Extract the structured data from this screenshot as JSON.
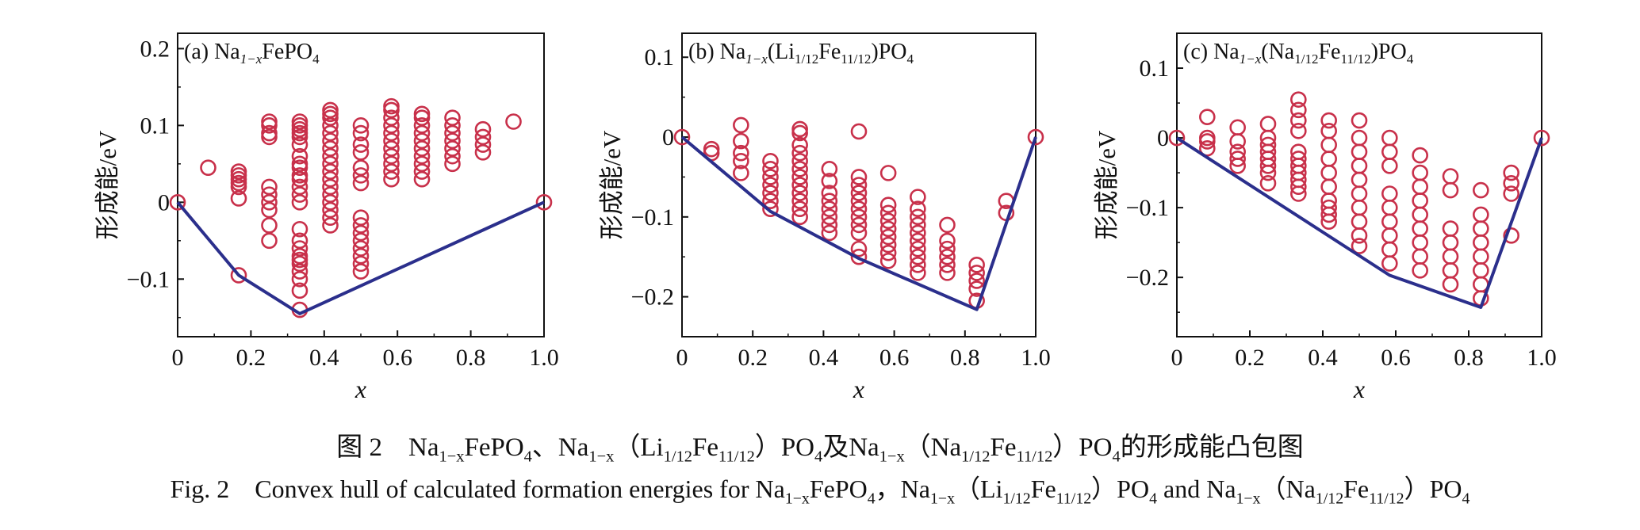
{
  "chart_data": [
    {
      "type": "scatter",
      "label": "(a) Na",
      "label_sub": "1−x",
      "label_rest": "FePO",
      "label_sub2": "4",
      "label_tail": "",
      "xlabel": "x",
      "ylabel": "形成能/eV",
      "xlim": [
        0,
        1.0
      ],
      "ylim": [
        -0.175,
        0.22
      ],
      "xticks": [
        "0",
        "0.2",
        "0.4",
        "0.6",
        "0.8",
        "1.0"
      ],
      "yticks": [
        {
          "v": 0.2,
          "t": "0.2"
        },
        {
          "v": 0.1,
          "t": "0.1"
        },
        {
          "v": 0,
          "t": "0"
        },
        {
          "v": -0.1,
          "t": "−0.1"
        }
      ],
      "marker_color": "#c8304a",
      "hull_color": "#2b2f8c",
      "hull": [
        [
          0,
          0
        ],
        [
          0.1667,
          -0.095
        ],
        [
          0.3333,
          -0.145
        ],
        [
          1.0,
          0
        ]
      ],
      "points": [
        [
          0,
          0
        ],
        [
          0.0833,
          0.045
        ],
        [
          0.1667,
          0.04
        ],
        [
          0.1667,
          0.035
        ],
        [
          0.1667,
          0.03
        ],
        [
          0.1667,
          0.025
        ],
        [
          0.1667,
          0.02
        ],
        [
          0.1667,
          0.005
        ],
        [
          0.1667,
          -0.095
        ],
        [
          0.25,
          0.105
        ],
        [
          0.25,
          0.1
        ],
        [
          0.25,
          0.09
        ],
        [
          0.25,
          0.085
        ],
        [
          0.25,
          0.02
        ],
        [
          0.25,
          0.01
        ],
        [
          0.25,
          0.0
        ],
        [
          0.25,
          -0.01
        ],
        [
          0.25,
          -0.03
        ],
        [
          0.25,
          -0.05
        ],
        [
          0.3333,
          0.105
        ],
        [
          0.3333,
          0.1
        ],
        [
          0.3333,
          0.095
        ],
        [
          0.3333,
          0.09
        ],
        [
          0.3333,
          0.085
        ],
        [
          0.3333,
          0.075
        ],
        [
          0.3333,
          0.06
        ],
        [
          0.3333,
          0.05
        ],
        [
          0.3333,
          0.045
        ],
        [
          0.3333,
          0.035
        ],
        [
          0.3333,
          0.03
        ],
        [
          0.3333,
          0.02
        ],
        [
          0.3333,
          0.01
        ],
        [
          0.3333,
          0.0
        ],
        [
          0.3333,
          -0.035
        ],
        [
          0.3333,
          -0.05
        ],
        [
          0.3333,
          -0.06
        ],
        [
          0.3333,
          -0.07
        ],
        [
          0.3333,
          -0.075
        ],
        [
          0.3333,
          -0.08
        ],
        [
          0.3333,
          -0.09
        ],
        [
          0.3333,
          -0.1
        ],
        [
          0.3333,
          -0.115
        ],
        [
          0.3333,
          -0.14
        ],
        [
          0.4167,
          0.12
        ],
        [
          0.4167,
          0.115
        ],
        [
          0.4167,
          0.11
        ],
        [
          0.4167,
          0.1
        ],
        [
          0.4167,
          0.09
        ],
        [
          0.4167,
          0.08
        ],
        [
          0.4167,
          0.07
        ],
        [
          0.4167,
          0.06
        ],
        [
          0.4167,
          0.05
        ],
        [
          0.4167,
          0.04
        ],
        [
          0.4167,
          0.03
        ],
        [
          0.4167,
          0.02
        ],
        [
          0.4167,
          0.01
        ],
        [
          0.4167,
          0.0
        ],
        [
          0.4167,
          -0.01
        ],
        [
          0.4167,
          -0.02
        ],
        [
          0.4167,
          -0.03
        ],
        [
          0.5,
          0.1
        ],
        [
          0.5,
          0.09
        ],
        [
          0.5,
          0.075
        ],
        [
          0.5,
          0.065
        ],
        [
          0.5,
          0.045
        ],
        [
          0.5,
          0.035
        ],
        [
          0.5,
          0.025
        ],
        [
          0.5,
          -0.02
        ],
        [
          0.5,
          -0.03
        ],
        [
          0.5,
          -0.04
        ],
        [
          0.5,
          -0.05
        ],
        [
          0.5,
          -0.06
        ],
        [
          0.5,
          -0.07
        ],
        [
          0.5,
          -0.08
        ],
        [
          0.5,
          -0.09
        ],
        [
          0.5833,
          0.125
        ],
        [
          0.5833,
          0.12
        ],
        [
          0.5833,
          0.11
        ],
        [
          0.5833,
          0.1
        ],
        [
          0.5833,
          0.09
        ],
        [
          0.5833,
          0.08
        ],
        [
          0.5833,
          0.07
        ],
        [
          0.5833,
          0.06
        ],
        [
          0.5833,
          0.05
        ],
        [
          0.5833,
          0.04
        ],
        [
          0.5833,
          0.03
        ],
        [
          0.6667,
          0.115
        ],
        [
          0.6667,
          0.11
        ],
        [
          0.6667,
          0.1
        ],
        [
          0.6667,
          0.09
        ],
        [
          0.6667,
          0.08
        ],
        [
          0.6667,
          0.07
        ],
        [
          0.6667,
          0.06
        ],
        [
          0.6667,
          0.05
        ],
        [
          0.6667,
          0.04
        ],
        [
          0.6667,
          0.03
        ],
        [
          0.75,
          0.11
        ],
        [
          0.75,
          0.1
        ],
        [
          0.75,
          0.09
        ],
        [
          0.75,
          0.08
        ],
        [
          0.75,
          0.07
        ],
        [
          0.75,
          0.06
        ],
        [
          0.75,
          0.05
        ],
        [
          0.8333,
          0.095
        ],
        [
          0.8333,
          0.085
        ],
        [
          0.8333,
          0.075
        ],
        [
          0.8333,
          0.065
        ],
        [
          0.9167,
          0.105
        ],
        [
          1.0,
          0
        ]
      ]
    },
    {
      "type": "scatter",
      "label": "(b) Na",
      "label_sub": "1−x",
      "label_rest": "(Li",
      "label_sub2": "1/12",
      "label_tail": "Fe",
      "label_sub3": "11/12",
      "label_end": ")PO",
      "label_sub4": "4",
      "xlabel": "x",
      "ylabel": "形成能/eV",
      "xlim": [
        0,
        1.0
      ],
      "ylim": [
        -0.25,
        0.13
      ],
      "xticks": [
        "0",
        "0.2",
        "0.4",
        "0.6",
        "0.8",
        "1.0"
      ],
      "yticks": [
        {
          "v": 0.1,
          "t": "0.1"
        },
        {
          "v": 0,
          "t": "0"
        },
        {
          "v": -0.1,
          "t": "−0.1"
        },
        {
          "v": -0.2,
          "t": "−0.2"
        }
      ],
      "marker_color": "#c8304a",
      "hull_color": "#2b2f8c",
      "hull": [
        [
          0,
          0
        ],
        [
          0.25,
          -0.093
        ],
        [
          0.5,
          -0.152
        ],
        [
          0.8333,
          -0.216
        ],
        [
          1.0,
          0
        ]
      ],
      "points": [
        [
          0,
          0
        ],
        [
          0.0833,
          -0.015
        ],
        [
          0.0833,
          -0.02
        ],
        [
          0.1667,
          0.015
        ],
        [
          0.1667,
          -0.005
        ],
        [
          0.1667,
          -0.02
        ],
        [
          0.1667,
          -0.03
        ],
        [
          0.1667,
          -0.045
        ],
        [
          0.25,
          -0.03
        ],
        [
          0.25,
          -0.04
        ],
        [
          0.25,
          -0.05
        ],
        [
          0.25,
          -0.06
        ],
        [
          0.25,
          -0.07
        ],
        [
          0.25,
          -0.08
        ],
        [
          0.25,
          -0.09
        ],
        [
          0.3333,
          0.01
        ],
        [
          0.3333,
          0.005
        ],
        [
          0.3333,
          -0.01
        ],
        [
          0.3333,
          -0.02
        ],
        [
          0.3333,
          -0.03
        ],
        [
          0.3333,
          -0.04
        ],
        [
          0.3333,
          -0.05
        ],
        [
          0.3333,
          -0.06
        ],
        [
          0.3333,
          -0.07
        ],
        [
          0.3333,
          -0.08
        ],
        [
          0.3333,
          -0.09
        ],
        [
          0.3333,
          -0.1
        ],
        [
          0.4167,
          -0.04
        ],
        [
          0.4167,
          -0.055
        ],
        [
          0.4167,
          -0.07
        ],
        [
          0.4167,
          -0.08
        ],
        [
          0.4167,
          -0.09
        ],
        [
          0.4167,
          -0.1
        ],
        [
          0.4167,
          -0.11
        ],
        [
          0.4167,
          -0.12
        ],
        [
          0.5,
          0.007
        ],
        [
          0.5,
          -0.05
        ],
        [
          0.5,
          -0.06
        ],
        [
          0.5,
          -0.07
        ],
        [
          0.5,
          -0.08
        ],
        [
          0.5,
          -0.09
        ],
        [
          0.5,
          -0.1
        ],
        [
          0.5,
          -0.11
        ],
        [
          0.5,
          -0.12
        ],
        [
          0.5,
          -0.14
        ],
        [
          0.5,
          -0.15
        ],
        [
          0.5833,
          -0.045
        ],
        [
          0.5833,
          -0.085
        ],
        [
          0.5833,
          -0.095
        ],
        [
          0.5833,
          -0.105
        ],
        [
          0.5833,
          -0.115
        ],
        [
          0.5833,
          -0.125
        ],
        [
          0.5833,
          -0.135
        ],
        [
          0.5833,
          -0.145
        ],
        [
          0.5833,
          -0.155
        ],
        [
          0.6667,
          -0.075
        ],
        [
          0.6667,
          -0.09
        ],
        [
          0.6667,
          -0.1
        ],
        [
          0.6667,
          -0.11
        ],
        [
          0.6667,
          -0.12
        ],
        [
          0.6667,
          -0.13
        ],
        [
          0.6667,
          -0.14
        ],
        [
          0.6667,
          -0.15
        ],
        [
          0.6667,
          -0.16
        ],
        [
          0.6667,
          -0.17
        ],
        [
          0.75,
          -0.11
        ],
        [
          0.75,
          -0.13
        ],
        [
          0.75,
          -0.14
        ],
        [
          0.75,
          -0.15
        ],
        [
          0.75,
          -0.16
        ],
        [
          0.75,
          -0.17
        ],
        [
          0.8333,
          -0.16
        ],
        [
          0.8333,
          -0.17
        ],
        [
          0.8333,
          -0.18
        ],
        [
          0.8333,
          -0.19
        ],
        [
          0.8333,
          -0.205
        ],
        [
          0.9167,
          -0.08
        ],
        [
          0.9167,
          -0.095
        ],
        [
          1.0,
          0
        ]
      ]
    },
    {
      "type": "scatter",
      "label": "(c) Na",
      "label_sub": "1−x",
      "label_rest": "(Na",
      "label_sub2": "1/12",
      "label_tail": "Fe",
      "label_sub3": "11/12",
      "label_end": ")PO",
      "label_sub4": "4",
      "xlabel": "x",
      "ylabel": "形成能/eV",
      "xlim": [
        0,
        1.0
      ],
      "ylim": [
        -0.285,
        0.15
      ],
      "xticks": [
        "0",
        "0.2",
        "0.4",
        "0.6",
        "0.8",
        "1.0"
      ],
      "yticks": [
        {
          "v": 0.1,
          "t": "0.1"
        },
        {
          "v": 0,
          "t": "0"
        },
        {
          "v": -0.1,
          "t": "−0.1"
        },
        {
          "v": -0.2,
          "t": "−0.2"
        }
      ],
      "marker_color": "#c8304a",
      "hull_color": "#2b2f8c",
      "hull": [
        [
          0,
          0
        ],
        [
          0.5833,
          -0.197
        ],
        [
          0.8333,
          -0.243
        ],
        [
          1.0,
          0
        ]
      ],
      "points": [
        [
          0,
          0
        ],
        [
          0.0833,
          0.03
        ],
        [
          0.0833,
          0.0
        ],
        [
          0.0833,
          -0.005
        ],
        [
          0.0833,
          -0.015
        ],
        [
          0.1667,
          0.015
        ],
        [
          0.1667,
          -0.005
        ],
        [
          0.1667,
          -0.02
        ],
        [
          0.1667,
          -0.03
        ],
        [
          0.1667,
          -0.04
        ],
        [
          0.25,
          0.02
        ],
        [
          0.25,
          0.0
        ],
        [
          0.25,
          -0.01
        ],
        [
          0.25,
          -0.02
        ],
        [
          0.25,
          -0.03
        ],
        [
          0.25,
          -0.04
        ],
        [
          0.25,
          -0.05
        ],
        [
          0.25,
          -0.065
        ],
        [
          0.3333,
          0.055
        ],
        [
          0.3333,
          0.04
        ],
        [
          0.3333,
          0.025
        ],
        [
          0.3333,
          0.01
        ],
        [
          0.3333,
          -0.02
        ],
        [
          0.3333,
          -0.03
        ],
        [
          0.3333,
          -0.04
        ],
        [
          0.3333,
          -0.05
        ],
        [
          0.3333,
          -0.06
        ],
        [
          0.3333,
          -0.07
        ],
        [
          0.3333,
          -0.08
        ],
        [
          0.4167,
          0.025
        ],
        [
          0.4167,
          0.01
        ],
        [
          0.4167,
          -0.01
        ],
        [
          0.4167,
          -0.03
        ],
        [
          0.4167,
          -0.05
        ],
        [
          0.4167,
          -0.07
        ],
        [
          0.4167,
          -0.09
        ],
        [
          0.4167,
          -0.1
        ],
        [
          0.4167,
          -0.11
        ],
        [
          0.4167,
          -0.12
        ],
        [
          0.5,
          0.025
        ],
        [
          0.5,
          0.0
        ],
        [
          0.5,
          -0.02
        ],
        [
          0.5,
          -0.04
        ],
        [
          0.5,
          -0.06
        ],
        [
          0.5,
          -0.08
        ],
        [
          0.5,
          -0.1
        ],
        [
          0.5,
          -0.12
        ],
        [
          0.5,
          -0.14
        ],
        [
          0.5,
          -0.155
        ],
        [
          0.5833,
          0.0
        ],
        [
          0.5833,
          -0.02
        ],
        [
          0.5833,
          -0.04
        ],
        [
          0.5833,
          -0.08
        ],
        [
          0.5833,
          -0.1
        ],
        [
          0.5833,
          -0.12
        ],
        [
          0.5833,
          -0.14
        ],
        [
          0.5833,
          -0.16
        ],
        [
          0.5833,
          -0.18
        ],
        [
          0.6667,
          -0.025
        ],
        [
          0.6667,
          -0.05
        ],
        [
          0.6667,
          -0.07
        ],
        [
          0.6667,
          -0.09
        ],
        [
          0.6667,
          -0.11
        ],
        [
          0.6667,
          -0.13
        ],
        [
          0.6667,
          -0.15
        ],
        [
          0.6667,
          -0.17
        ],
        [
          0.6667,
          -0.19
        ],
        [
          0.75,
          -0.055
        ],
        [
          0.75,
          -0.075
        ],
        [
          0.75,
          -0.13
        ],
        [
          0.75,
          -0.15
        ],
        [
          0.75,
          -0.17
        ],
        [
          0.75,
          -0.19
        ],
        [
          0.75,
          -0.21
        ],
        [
          0.8333,
          -0.075
        ],
        [
          0.8333,
          -0.11
        ],
        [
          0.8333,
          -0.13
        ],
        [
          0.8333,
          -0.15
        ],
        [
          0.8333,
          -0.17
        ],
        [
          0.8333,
          -0.19
        ],
        [
          0.8333,
          -0.21
        ],
        [
          0.8333,
          -0.23
        ],
        [
          0.9167,
          -0.05
        ],
        [
          0.9167,
          -0.065
        ],
        [
          0.9167,
          -0.08
        ],
        [
          0.9167,
          -0.14
        ],
        [
          1.0,
          0
        ]
      ]
    }
  ],
  "caption": {
    "cn_parts": [
      "图 2　Na",
      "1−x",
      "FePO",
      "4",
      "、Na",
      "1−x",
      "（Li",
      "1/12",
      "Fe",
      "11/12",
      "）PO",
      "4",
      "及Na",
      "1−x",
      "（Na",
      "1/12",
      "Fe",
      "11/12",
      "）PO",
      "4",
      "的形成能凸包图"
    ],
    "en_parts": [
      "Fig. 2　Convex hull of calculated formation energies for Na",
      "1−x",
      "FePO",
      "4",
      "，Na",
      "1−x",
      "（Li",
      "1/12",
      "Fe",
      "11/12",
      "）PO",
      "4",
      " and Na",
      "1−x",
      "（Na",
      "1/12",
      "Fe",
      "11/12",
      "）PO",
      "4"
    ]
  }
}
